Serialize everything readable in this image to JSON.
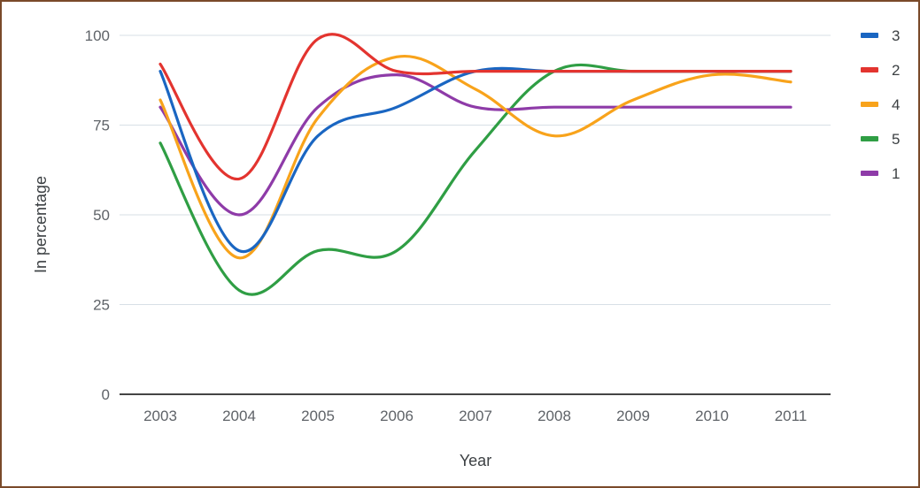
{
  "chart_data": {
    "type": "line",
    "xlabel": "Year",
    "ylabel": "In percentage",
    "ylim": [
      0,
      100
    ],
    "y_ticks": [
      "0",
      "25",
      "50",
      "75",
      "100"
    ],
    "categories": [
      "2003",
      "2004",
      "2005",
      "2006",
      "2007",
      "2008",
      "2009",
      "2010",
      "2011"
    ],
    "grid": true,
    "legend_position": "right",
    "series": [
      {
        "name": "3",
        "color": "#1a66c2",
        "values": [
          90,
          40,
          72,
          80,
          90,
          90,
          90,
          90,
          90
        ]
      },
      {
        "name": "2",
        "color": "#e3342f",
        "values": [
          92,
          60,
          99,
          90,
          90,
          90,
          90,
          90,
          90
        ]
      },
      {
        "name": "4",
        "color": "#f8a31b",
        "values": [
          82,
          38,
          77,
          94,
          85,
          72,
          82,
          89,
          87
        ]
      },
      {
        "name": "5",
        "color": "#2f9e44",
        "values": [
          70,
          29,
          40,
          40,
          68,
          90,
          90,
          90,
          90
        ]
      },
      {
        "name": "1",
        "color": "#8e3ba8",
        "values": [
          80,
          50,
          80,
          89,
          80,
          80,
          80,
          80,
          80
        ]
      }
    ]
  }
}
